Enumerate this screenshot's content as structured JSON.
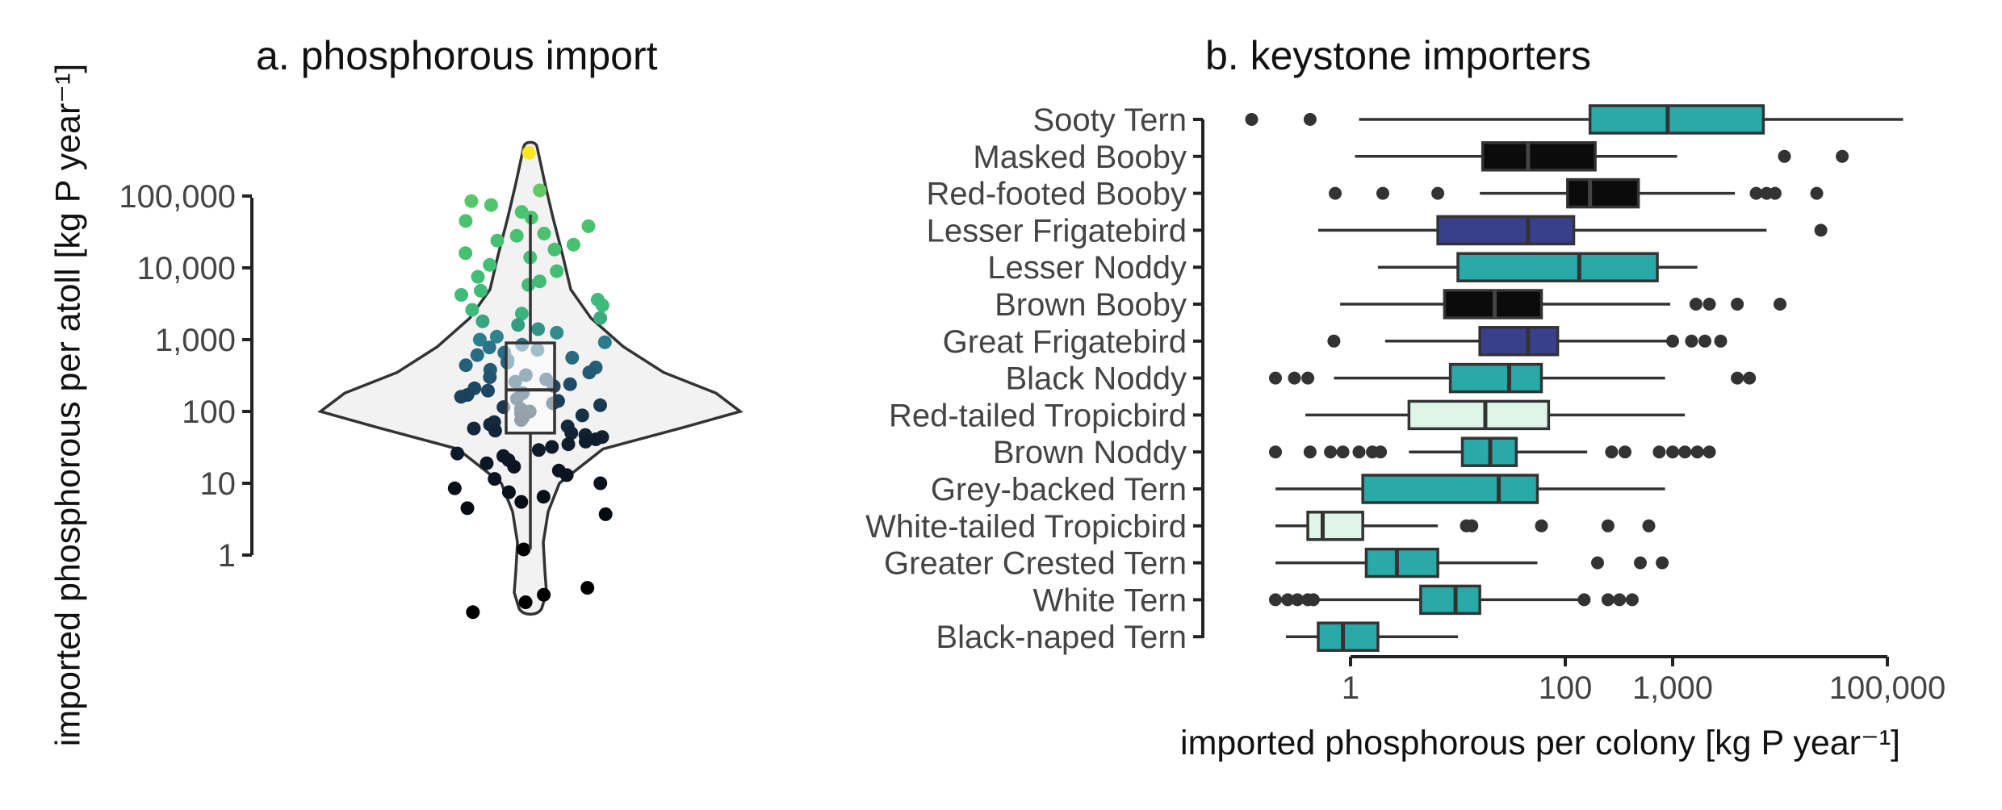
{
  "chart_data": [
    {
      "type": "violin",
      "title": "a. phosphorous import",
      "ylabel": "imported phosphorous per atoll [kg P year⁻¹]",
      "y_scale": "log10",
      "ylim": [
        0.15,
        800000
      ],
      "y_ticks": [
        1,
        10,
        100,
        1000,
        10000,
        100000
      ],
      "y_tick_labels": [
        "1",
        "10",
        "100",
        "1,000",
        "10,000",
        "100,000"
      ],
      "color_scale": [
        "#000000",
        "#14253a",
        "#2d6a88",
        "#3fb97a",
        "#7dd060",
        "#fde725"
      ],
      "box": {
        "q1": 50,
        "median": 200,
        "q3": 900,
        "whisker_low": 1.2,
        "whisker_high": 55000
      },
      "points": [
        400000,
        120000,
        85000,
        75000,
        60000,
        50000,
        45000,
        38000,
        30000,
        28000,
        24000,
        21000,
        18000,
        16000,
        14000,
        11000,
        9000,
        7500,
        6500,
        5800,
        4800,
        4200,
        3600,
        3000,
        2600,
        2300,
        2000,
        1800,
        1600,
        1400,
        1250,
        1100,
        1000,
        920,
        850,
        780,
        720,
        660,
        610,
        560,
        520,
        480,
        440,
        410,
        380,
        350,
        320,
        300,
        280,
        260,
        240,
        225,
        210,
        195,
        180,
        170,
        160,
        150,
        140,
        130,
        122,
        115,
        108,
        100,
        94,
        88,
        82,
        76,
        71,
        66,
        62,
        58,
        54,
        50,
        47,
        44,
        41,
        38,
        35,
        32,
        29,
        26,
        24,
        21,
        19,
        17,
        15,
        13,
        11.5,
        10,
        8.5,
        7.5,
        6.5,
        5.5,
        4.5,
        3.7,
        1.2,
        0.35,
        0.28,
        0.22,
        0.16
      ]
    },
    {
      "type": "boxplot",
      "orientation": "horizontal",
      "title": "b. keystone importers",
      "xlabel": "imported phosphorous per colony [kg P year⁻¹]",
      "x_scale": "log10",
      "xlim": [
        0.15,
        250000
      ],
      "x_ticks": [
        1,
        100,
        1000,
        100000
      ],
      "x_tick_labels": [
        "1",
        "100",
        "1,000",
        "100,000"
      ],
      "categories": [
        "Sooty Tern",
        "Masked Booby",
        "Red-footed Booby",
        "Lesser Frigatebird",
        "Lesser Noddy",
        "Brown Booby",
        "Great Frigatebird",
        "Black Noddy",
        "Red-tailed Tropicbird",
        "Brown Noddy",
        "Grey-backed Tern",
        "White-tailed Tropicbird",
        "Greater Crested Tern",
        "White Tern",
        "Black-naped Tern"
      ],
      "colors": {
        "tern": "#2aa9a9",
        "booby": "#0b0b0b",
        "frigatebird": "#3a3f8c",
        "tropicbird": "#dff5e8"
      },
      "boxes": [
        {
          "species": "Sooty Tern",
          "group": "tern",
          "whisker_low": 1.2,
          "q1": 170,
          "median": 900,
          "q3": 7000,
          "whisker_high": 140000,
          "outliers": [
            0.12,
            0.42
          ]
        },
        {
          "species": "Masked Booby",
          "group": "booby",
          "whisker_low": 1.1,
          "q1": 17,
          "median": 45,
          "q3": 190,
          "whisker_high": 1100,
          "outliers": [
            11000,
            38000
          ]
        },
        {
          "species": "Red-footed Booby",
          "group": "booby",
          "whisker_low": 16,
          "q1": 105,
          "median": 170,
          "q3": 480,
          "whisker_high": 3800,
          "outliers": [
            0.72,
            2.0,
            6.5,
            6000,
            7500,
            9000,
            22000
          ]
        },
        {
          "species": "Lesser Frigatebird",
          "group": "frigatebird",
          "whisker_low": 0.5,
          "q1": 6.5,
          "median": 45,
          "q3": 120,
          "whisker_high": 7500,
          "outliers": [
            24000
          ]
        },
        {
          "species": "Lesser Noddy",
          "group": "tern",
          "whisker_low": 1.8,
          "q1": 10,
          "median": 135,
          "q3": 720,
          "whisker_high": 1700,
          "outliers": []
        },
        {
          "species": "Brown Booby",
          "group": "booby",
          "whisker_low": 0.8,
          "q1": 7.5,
          "median": 22,
          "q3": 60,
          "whisker_high": 950,
          "outliers": [
            1650,
            2200,
            4000,
            10000
          ]
        },
        {
          "species": "Great Frigatebird",
          "group": "frigatebird",
          "whisker_low": 2.1,
          "q1": 16,
          "median": 45,
          "q3": 85,
          "whisker_high": 900,
          "outliers": [
            0.7,
            1000,
            1500,
            2000,
            2800
          ]
        },
        {
          "species": "Black Noddy",
          "group": "tern",
          "whisker_low": 0.7,
          "q1": 8.5,
          "median": 30,
          "q3": 60,
          "whisker_high": 850,
          "outliers": [
            0.2,
            0.3,
            0.4,
            4000,
            5200
          ]
        },
        {
          "species": "Red-tailed Tropicbird",
          "group": "tropicbird",
          "whisker_low": 0.38,
          "q1": 3.5,
          "median": 18,
          "q3": 70,
          "whisker_high": 1300,
          "outliers": []
        },
        {
          "species": "Brown Noddy",
          "group": "tern",
          "whisker_low": 3.5,
          "q1": 11,
          "median": 20,
          "q3": 35,
          "whisker_high": 160,
          "outliers": [
            0.2,
            0.42,
            0.65,
            0.85,
            1.2,
            1.6,
            1.9,
            270,
            360,
            750,
            1000,
            1300,
            1700,
            2200
          ]
        },
        {
          "species": "Grey-backed Tern",
          "group": "tern",
          "whisker_low": 0.2,
          "q1": 1.3,
          "median": 24,
          "q3": 55,
          "whisker_high": 850,
          "outliers": []
        },
        {
          "species": "White-tailed Tropicbird",
          "group": "tropicbird",
          "whisker_low": 0.2,
          "q1": 0.4,
          "median": 0.55,
          "q3": 1.3,
          "whisker_high": 6.5,
          "outliers": [
            12,
            13.5,
            60,
            250,
            600
          ]
        },
        {
          "species": "Greater Crested Tern",
          "group": "tern",
          "whisker_low": 0.2,
          "q1": 1.4,
          "median": 2.7,
          "q3": 6.5,
          "whisker_high": 55,
          "outliers": [
            200,
            500,
            800
          ]
        },
        {
          "species": "White Tern",
          "group": "tern",
          "whisker_low": 0.28,
          "q1": 4.5,
          "median": 9.5,
          "q3": 16,
          "whisker_high": 140,
          "outliers": [
            0.2,
            0.26,
            0.32,
            0.4,
            0.45,
            150,
            250,
            320,
            420
          ]
        },
        {
          "species": "Black-naped Tern",
          "group": "tern",
          "whisker_low": 0.25,
          "q1": 0.5,
          "median": 0.85,
          "q3": 1.8,
          "whisker_high": 10,
          "outliers": []
        }
      ]
    }
  ]
}
